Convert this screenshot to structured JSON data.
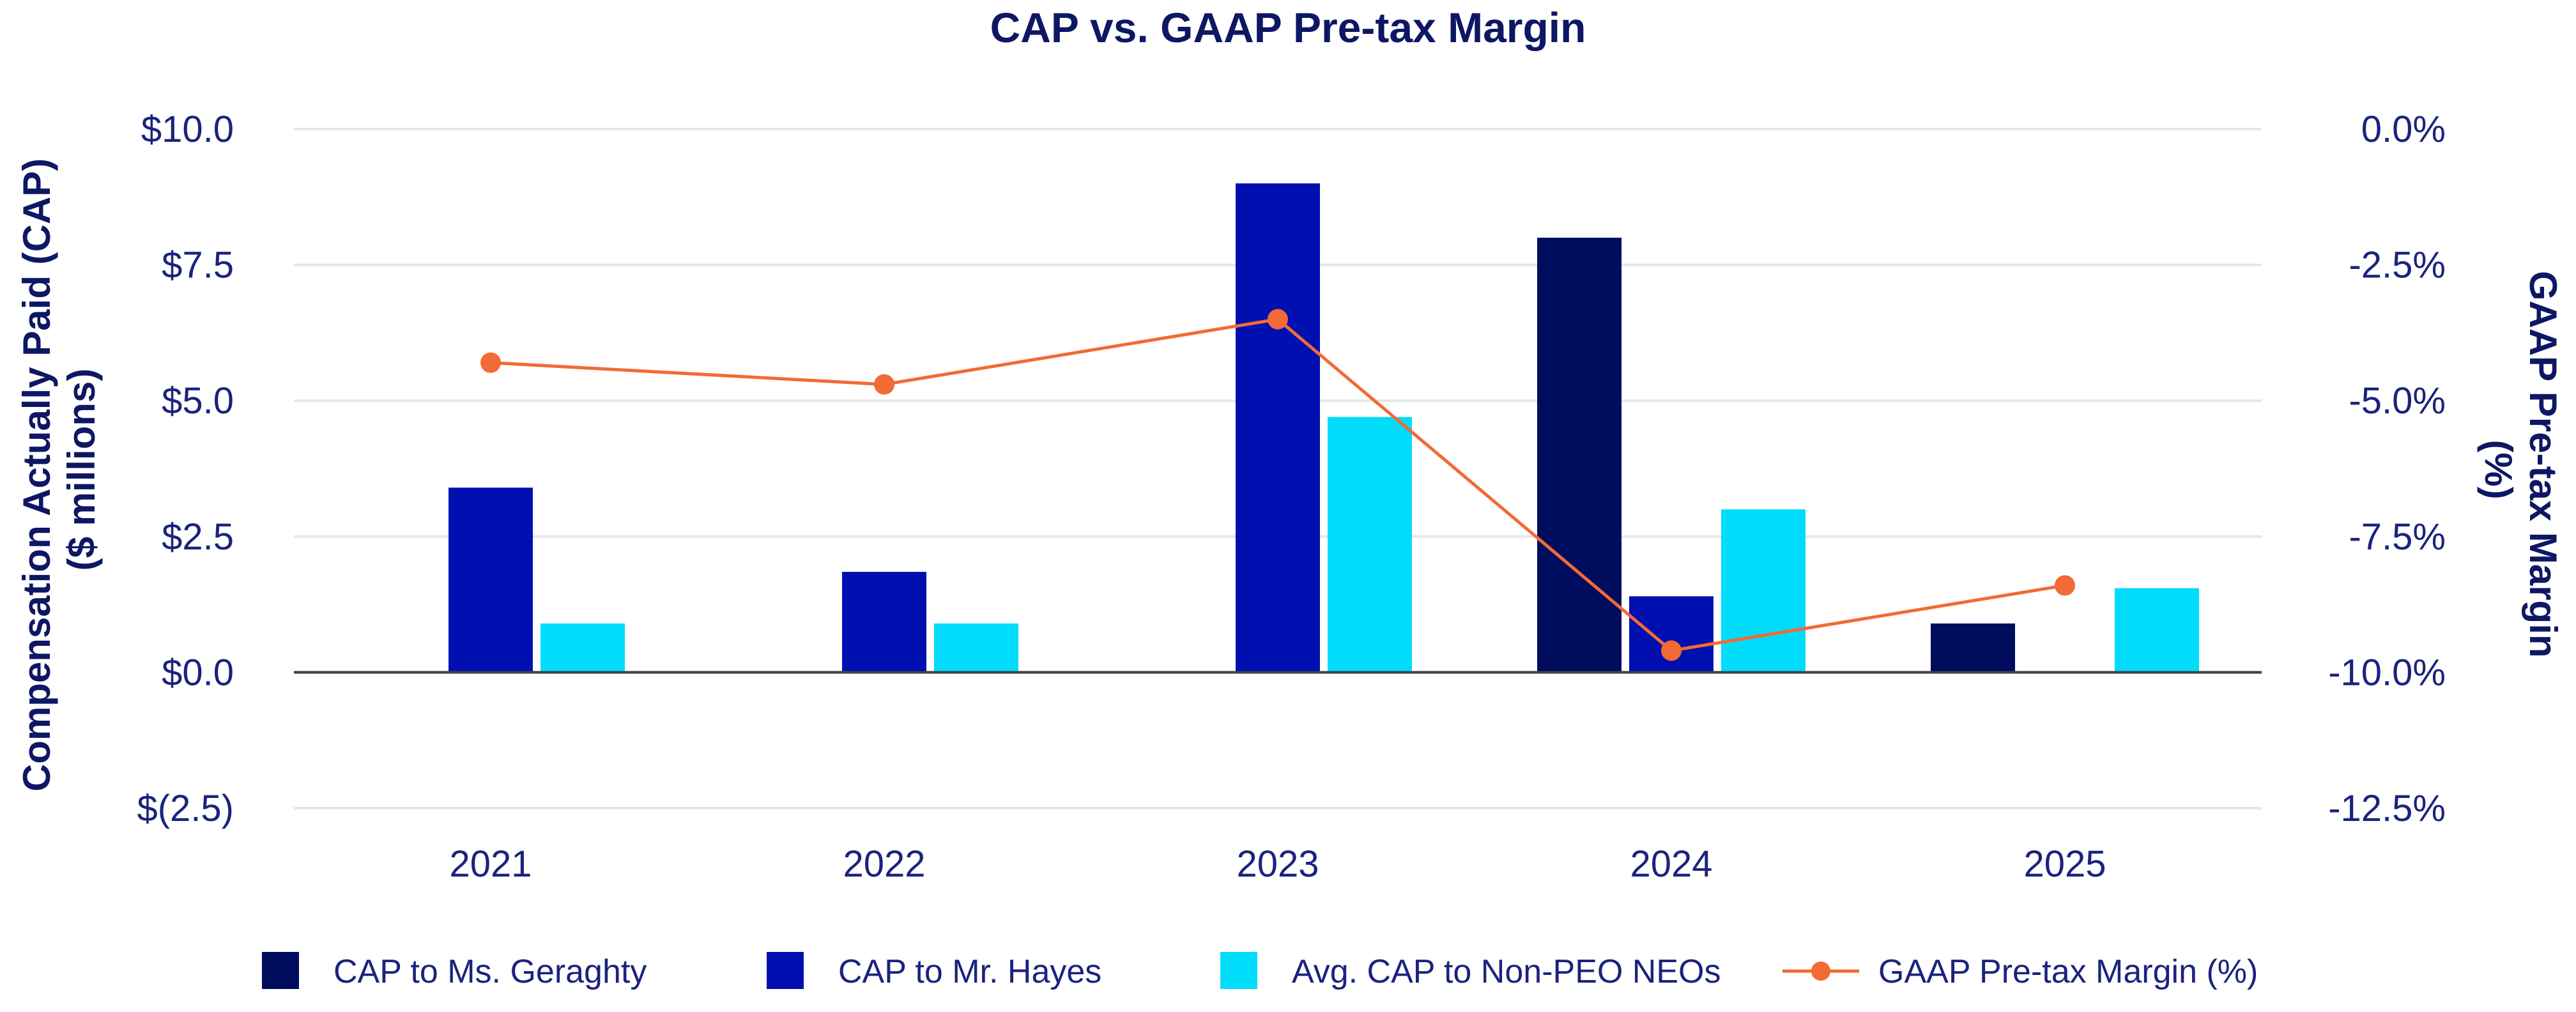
{
  "chart_data": {
    "type": "bar",
    "title": "CAP vs. GAAP Pre-tax Margin",
    "categories": [
      "2021",
      "2022",
      "2023",
      "2024",
      "2025"
    ],
    "ylabel": [
      "Compensation Actually Paid (CAP)",
      "($ millions)"
    ],
    "y2label": [
      "GAAP Pre-tax Margin",
      "(%)"
    ],
    "ylim": [
      -2.5,
      10.0
    ],
    "y2lim": [
      -12.5,
      0.0
    ],
    "yticks": [
      {
        "value": 10.0,
        "label": "$10.0"
      },
      {
        "value": 7.5,
        "label": "$7.5"
      },
      {
        "value": 5.0,
        "label": "$5.0"
      },
      {
        "value": 2.5,
        "label": "$2.5"
      },
      {
        "value": 0.0,
        "label": "$0.0"
      },
      {
        "value": -2.5,
        "label": "$(2.5)"
      }
    ],
    "y2ticks": [
      {
        "value": 0.0,
        "label": "0.0%"
      },
      {
        "value": -2.5,
        "label": "-2.5%"
      },
      {
        "value": -5.0,
        "label": "-5.0%"
      },
      {
        "value": -7.5,
        "label": "-7.5%"
      },
      {
        "value": -10.0,
        "label": "-10.0%"
      },
      {
        "value": -12.5,
        "label": "-12.5%"
      }
    ],
    "series": [
      {
        "name": "CAP to Ms. Geraghty",
        "kind": "bar",
        "axis": "left",
        "color": "#000c5e",
        "values": [
          null,
          null,
          null,
          8.0,
          0.9
        ]
      },
      {
        "name": "CAP to Mr. Hayes",
        "kind": "bar",
        "axis": "left",
        "color": "#0010b0",
        "values": [
          3.4,
          1.85,
          9.0,
          1.4,
          null
        ]
      },
      {
        "name": "Avg. CAP to Non-PEO NEOs",
        "kind": "bar",
        "axis": "left",
        "color": "#00dcfa",
        "values": [
          0.9,
          0.9,
          4.7,
          3.0,
          1.55
        ]
      },
      {
        "name": "GAAP Pre-tax Margin (%)",
        "kind": "line",
        "axis": "right",
        "color": "#f26a35",
        "values": [
          -4.3,
          -4.7,
          -3.5,
          -9.6,
          -8.4
        ]
      }
    ],
    "legend_position": "bottom"
  }
}
